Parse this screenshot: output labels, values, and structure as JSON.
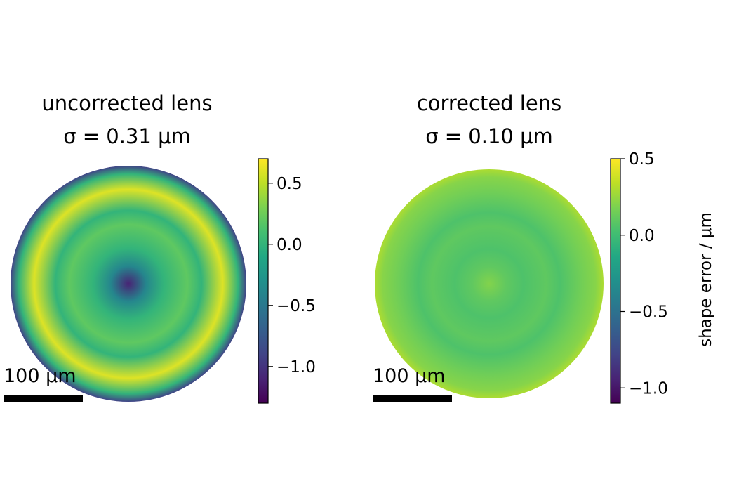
{
  "chart_data": [
    {
      "type": "heatmap",
      "title": "uncorrected lens",
      "subtitle": "σ = 0.31 μm",
      "scalebar_label": "100 μm",
      "colormap": "viridis",
      "colorbar": {
        "range": [
          -1.3,
          0.7
        ],
        "ticks": [
          0.5,
          0.0,
          -0.5,
          -1.0
        ],
        "tick_labels": [
          "0.5",
          "0.0",
          "−0.5",
          "−1.0"
        ],
        "label": ""
      },
      "surface_features": {
        "center_value": -1.1,
        "background_value": 0.0,
        "outer_ring_value": 0.6,
        "rim_edge_value": -0.9,
        "inner_ring_value": 0.2
      }
    },
    {
      "type": "heatmap",
      "title": "corrected lens",
      "subtitle": "σ = 0.10 μm",
      "scalebar_label": "100 μm",
      "colormap": "viridis",
      "colorbar": {
        "range": [
          -1.1,
          0.5
        ],
        "ticks": [
          0.5,
          0.0,
          -0.5,
          -1.0
        ],
        "tick_labels": [
          "0.5",
          "0.0",
          "−0.5",
          "−1.0"
        ],
        "label": "shape error / μm"
      },
      "surface_features": {
        "center_value": 0.2,
        "background_value": 0.05,
        "outer_ring_value": 0.15,
        "rim_edge_value": 0.3,
        "inner_ring_value": 0.1
      }
    }
  ],
  "colors": {
    "viridis_stops": [
      "#440154",
      "#482475",
      "#414487",
      "#355f8d",
      "#2a788e",
      "#21918c",
      "#22a884",
      "#44bf70",
      "#7ad151",
      "#bddf26",
      "#fde725"
    ],
    "scalebar": "#000000"
  }
}
